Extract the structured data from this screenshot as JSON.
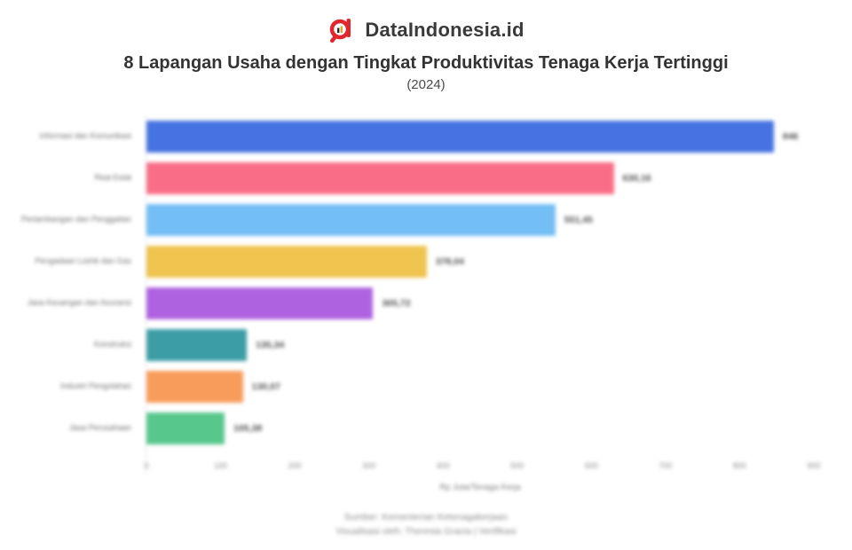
{
  "header": {
    "brand": "DataIndonesia.id",
    "logo_color": "#E2262E",
    "title": "8 Lapangan Usaha dengan Tingkat Produktivitas Tenaga Kerja Tertinggi",
    "subtitle": "(2024)"
  },
  "chart_data": {
    "type": "bar",
    "orientation": "horizontal",
    "title": "8 Lapangan Usaha dengan Tingkat Produktivitas Tenaga Kerja Tertinggi (2024)",
    "xlabel": "Rp Juta/Tenaga Kerja",
    "ylabel": "",
    "xlim": [
      0,
      900
    ],
    "xticks": [
      0,
      100,
      200,
      300,
      400,
      500,
      600,
      700,
      800,
      900
    ],
    "grid": false,
    "legend": false,
    "categories": [
      "Informasi dan Komunikasi",
      "Real Estat",
      "Pertambangan dan Penggalian",
      "Pengadaan Listrik dan Gas",
      "Jasa Keuangan dan Asuransi",
      "Konstruksi",
      "Industri Pengolahan",
      "Jasa Perusahaan"
    ],
    "values": [
      846,
      630.16,
      551.45,
      378.04,
      305.72,
      135.34,
      130.07,
      105.38
    ],
    "value_labels": [
      "846",
      "630,16",
      "551,45",
      "378,04",
      "305,72",
      "135,34",
      "130,07",
      "105,38"
    ],
    "bar_colors": [
      "#4573E1",
      "#F96E86",
      "#73BEF5",
      "#EFC44F",
      "#AF62DF",
      "#3D9DA6",
      "#F89C5B",
      "#57C78C"
    ]
  },
  "footer": {
    "source": "Sumber: Kementerian Ketenagakerjaan",
    "credit": "Visualisasi oleh: Theresia Gracia | Verifikasi"
  }
}
